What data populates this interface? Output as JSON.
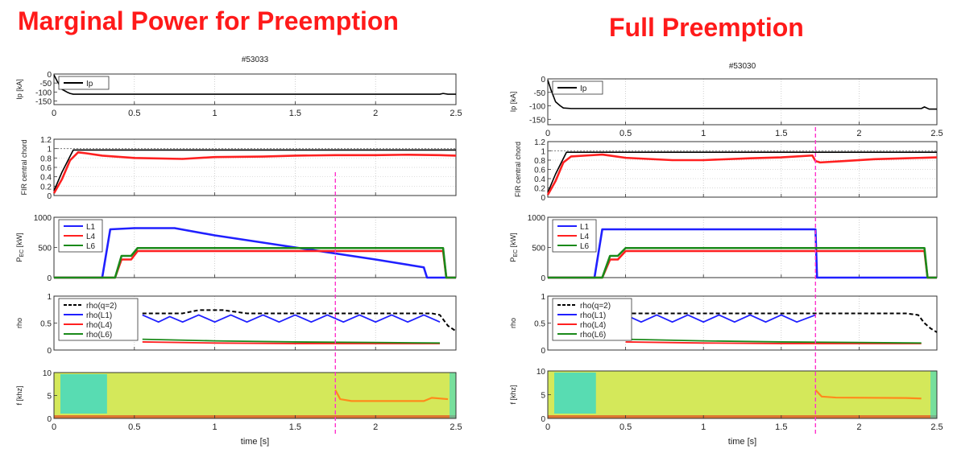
{
  "headings": {
    "left": "Marginal Power for Preemption",
    "right": "Full Preemption"
  },
  "colors": {
    "heading": "#ff1a1a",
    "ip": "#000000",
    "fir": "#ff2020",
    "l1": "#2020ff",
    "l4": "#ff2020",
    "l6": "#1a8a1a",
    "marker": "#ff33cc",
    "spec_bg": "#d4e85a",
    "spec_low": "#38d8c8",
    "spec_line": "#ff8a1a"
  },
  "chart_data": [
    {
      "type": "line",
      "shot": "#53033",
      "xlabel": "time [s]",
      "xlim": [
        0,
        2.5
      ],
      "xticks": [
        "0",
        "0.5",
        "1",
        "1.5",
        "2",
        "2.5"
      ],
      "marker_time": 1.75,
      "panels": [
        {
          "ylabel": "Ip [kA]",
          "ylim": [
            -170,
            0
          ],
          "yticks": [
            "0",
            "-50",
            "-100",
            "-150"
          ],
          "legend": [
            "Ip"
          ],
          "series": [
            {
              "name": "Ip",
              "x": [
                0,
                0.02,
                0.05,
                0.08,
                0.1,
                0.12,
                0.3,
                1.0,
                2.4,
                2.42,
                2.45,
                2.5
              ],
              "y": [
                -5,
                -40,
                -85,
                -100,
                -108,
                -112,
                -112,
                -112,
                -112,
                -108,
                -112,
                -112
              ]
            }
          ]
        },
        {
          "ylabel": "FIR central chord",
          "ylim": [
            0,
            1.2
          ],
          "yticks": [
            "0",
            "0.2",
            "0.4",
            "0.6",
            "0.8",
            "1",
            "1.2"
          ],
          "reference_line": 1.0,
          "series": [
            {
              "name": "reference",
              "x": [
                0,
                0.05,
                0.12,
                2.5
              ],
              "y": [
                0.1,
                0.5,
                0.97,
                0.97
              ]
            },
            {
              "name": "FIR",
              "x": [
                0,
                0.05,
                0.1,
                0.15,
                0.2,
                0.3,
                0.5,
                0.8,
                1.0,
                1.3,
                1.5,
                1.75,
                2.0,
                2.2,
                2.4,
                2.5
              ],
              "y": [
                0.05,
                0.35,
                0.75,
                0.92,
                0.9,
                0.85,
                0.8,
                0.78,
                0.82,
                0.83,
                0.85,
                0.86,
                0.86,
                0.87,
                0.86,
                0.85
              ]
            }
          ]
        },
        {
          "ylabel": "P_EC [kW]",
          "ylim": [
            0,
            1000
          ],
          "yticks": [
            "0",
            "500",
            "1000"
          ],
          "legend": [
            "L1",
            "L4",
            "L6"
          ],
          "series": [
            {
              "name": "L1",
              "x": [
                0,
                0.3,
                0.35,
                0.5,
                0.75,
                1.0,
                1.5,
                2.0,
                2.3,
                2.32,
                2.5
              ],
              "y": [
                0,
                0,
                800,
                820,
                820,
                700,
                500,
                300,
                170,
                0,
                0
              ]
            },
            {
              "name": "L4",
              "x": [
                0,
                0.38,
                0.42,
                0.48,
                0.52,
                2.42,
                2.44,
                2.5
              ],
              "y": [
                0,
                0,
                300,
                300,
                440,
                440,
                0,
                0
              ]
            },
            {
              "name": "L6",
              "x": [
                0,
                0.38,
                0.42,
                0.48,
                0.52,
                2.42,
                2.44,
                2.5
              ],
              "y": [
                0,
                0,
                360,
                360,
                490,
                490,
                0,
                0
              ]
            }
          ]
        },
        {
          "ylabel": "rho",
          "ylim": [
            0,
            1
          ],
          "yticks": [
            "0",
            "0.5",
            "1"
          ],
          "legend": [
            "rho(q=2)",
            "rho(L1)",
            "rho(L4)",
            "rho(L6)"
          ],
          "series": [
            {
              "name": "rho(q=2)",
              "x": [
                0.55,
                0.8,
                0.9,
                1.05,
                1.2,
                2.35,
                2.4,
                2.45,
                2.5
              ],
              "y": [
                0.68,
                0.68,
                0.74,
                0.74,
                0.68,
                0.68,
                0.65,
                0.45,
                0.35
              ]
            },
            {
              "name": "rho(L1)",
              "x": [
                0.55,
                0.65,
                0.72,
                0.8,
                0.9,
                1.0,
                1.1,
                1.2,
                1.3,
                1.4,
                1.5,
                1.6,
                1.7,
                1.8,
                1.9,
                2.0,
                2.1,
                2.2,
                2.3,
                2.4
              ],
              "y": [
                0.65,
                0.52,
                0.62,
                0.52,
                0.65,
                0.52,
                0.65,
                0.52,
                0.65,
                0.52,
                0.65,
                0.52,
                0.65,
                0.52,
                0.65,
                0.52,
                0.65,
                0.52,
                0.65,
                0.52
              ]
            },
            {
              "name": "rho(L4)",
              "x": [
                0.55,
                1.0,
                1.5,
                2.0,
                2.4
              ],
              "y": [
                0.15,
                0.13,
                0.12,
                0.12,
                0.12
              ]
            },
            {
              "name": "rho(L6)",
              "x": [
                0.55,
                1.0,
                1.5,
                2.0,
                2.4
              ],
              "y": [
                0.2,
                0.17,
                0.15,
                0.14,
                0.13
              ]
            }
          ]
        },
        {
          "type": "heatmap",
          "ylabel": "f [khz]",
          "ylim": [
            0,
            10
          ],
          "yticks": [
            "0",
            "5",
            "10"
          ],
          "low_region_x": [
            0.0,
            0.35
          ],
          "mode_line": {
            "x": [
              1.75,
              1.78,
              1.85,
              2.3,
              2.35,
              2.45
            ],
            "y": [
              6.2,
              4.2,
              3.8,
              3.8,
              4.5,
              4.2
            ]
          }
        }
      ]
    },
    {
      "type": "line",
      "shot": "#53030",
      "xlabel": "time [s]",
      "xlim": [
        0,
        2.5
      ],
      "xticks": [
        "0",
        "0.5",
        "1",
        "1.5",
        "2",
        "2.5"
      ],
      "marker_time": 1.72,
      "panels": [
        {
          "ylabel": "Ip [kA]",
          "ylim": [
            -170,
            0
          ],
          "yticks": [
            "0",
            "-50",
            "-100",
            "-150"
          ],
          "legend": [
            "Ip"
          ],
          "series": [
            {
              "name": "Ip",
              "x": [
                0,
                0.02,
                0.05,
                0.08,
                0.1,
                0.15,
                0.5,
                1.5,
                2.4,
                2.42,
                2.45,
                2.5
              ],
              "y": [
                -5,
                -40,
                -85,
                -100,
                -108,
                -110,
                -110,
                -110,
                -110,
                -104,
                -112,
                -112
              ]
            }
          ]
        },
        {
          "ylabel": "FIR central chord",
          "ylim": [
            0,
            1.2
          ],
          "yticks": [
            "0",
            "0.2",
            "0.4",
            "0.6",
            "0.8",
            "1",
            "1.2"
          ],
          "reference_line": 1.0,
          "series": [
            {
              "name": "reference",
              "x": [
                0,
                0.05,
                0.12,
                2.5
              ],
              "y": [
                0.1,
                0.5,
                0.97,
                0.97
              ]
            },
            {
              "name": "FIR",
              "x": [
                0,
                0.05,
                0.1,
                0.15,
                0.25,
                0.35,
                0.5,
                0.8,
                1.0,
                1.3,
                1.5,
                1.7,
                1.72,
                1.75,
                1.9,
                2.1,
                2.3,
                2.5
              ],
              "y": [
                0.05,
                0.35,
                0.75,
                0.88,
                0.9,
                0.92,
                0.85,
                0.8,
                0.8,
                0.84,
                0.86,
                0.9,
                0.78,
                0.75,
                0.78,
                0.82,
                0.84,
                0.86
              ]
            }
          ]
        },
        {
          "ylabel": "P_EC [kW]",
          "ylim": [
            0,
            1000
          ],
          "yticks": [
            "0",
            "500",
            "1000"
          ],
          "legend": [
            "L1",
            "L4",
            "L6"
          ],
          "series": [
            {
              "name": "L1",
              "x": [
                0,
                0.3,
                0.35,
                1.72,
                1.73,
                2.5
              ],
              "y": [
                0,
                0,
                800,
                800,
                0,
                0
              ]
            },
            {
              "name": "L4",
              "x": [
                0,
                0.35,
                0.4,
                0.45,
                0.5,
                2.42,
                2.44,
                2.5
              ],
              "y": [
                0,
                0,
                300,
                300,
                440,
                440,
                0,
                0
              ]
            },
            {
              "name": "L6",
              "x": [
                0,
                0.35,
                0.4,
                0.45,
                0.5,
                2.42,
                2.44,
                2.5
              ],
              "y": [
                0,
                0,
                360,
                360,
                490,
                490,
                0,
                0
              ]
            }
          ]
        },
        {
          "ylabel": "rho",
          "ylim": [
            0,
            1
          ],
          "yticks": [
            "0",
            "0.5",
            "1"
          ],
          "legend": [
            "rho(q=2)",
            "rho(L1)",
            "rho(L4)",
            "rho(L6)"
          ],
          "series": [
            {
              "name": "rho(q=2)",
              "x": [
                0.5,
                1.0,
                1.72,
                2.3,
                2.38,
                2.42,
                2.46,
                2.5
              ],
              "y": [
                0.68,
                0.68,
                0.68,
                0.68,
                0.65,
                0.5,
                0.4,
                0.33
              ]
            },
            {
              "name": "rho(L1)",
              "x": [
                0.5,
                0.6,
                0.7,
                0.8,
                0.9,
                1.0,
                1.1,
                1.2,
                1.3,
                1.4,
                1.5,
                1.6,
                1.72
              ],
              "y": [
                0.65,
                0.52,
                0.65,
                0.52,
                0.65,
                0.52,
                0.65,
                0.52,
                0.65,
                0.52,
                0.65,
                0.52,
                0.65
              ]
            },
            {
              "name": "rho(L4)",
              "x": [
                0.5,
                1.0,
                1.5,
                2.0,
                2.4
              ],
              "y": [
                0.15,
                0.13,
                0.12,
                0.12,
                0.12
              ]
            },
            {
              "name": "rho(L6)",
              "x": [
                0.5,
                1.0,
                1.5,
                2.0,
                2.4
              ],
              "y": [
                0.2,
                0.17,
                0.15,
                0.14,
                0.13
              ]
            }
          ]
        },
        {
          "type": "heatmap",
          "ylabel": "f [khz]",
          "ylim": [
            0,
            10
          ],
          "yticks": [
            "0",
            "5",
            "10"
          ],
          "low_region_x": [
            0.0,
            0.33
          ],
          "mode_line": {
            "x": [
              1.72,
              1.76,
              1.85,
              2.3,
              2.4
            ],
            "y": [
              6.0,
              4.6,
              4.4,
              4.3,
              4.2
            ]
          }
        }
      ]
    }
  ]
}
